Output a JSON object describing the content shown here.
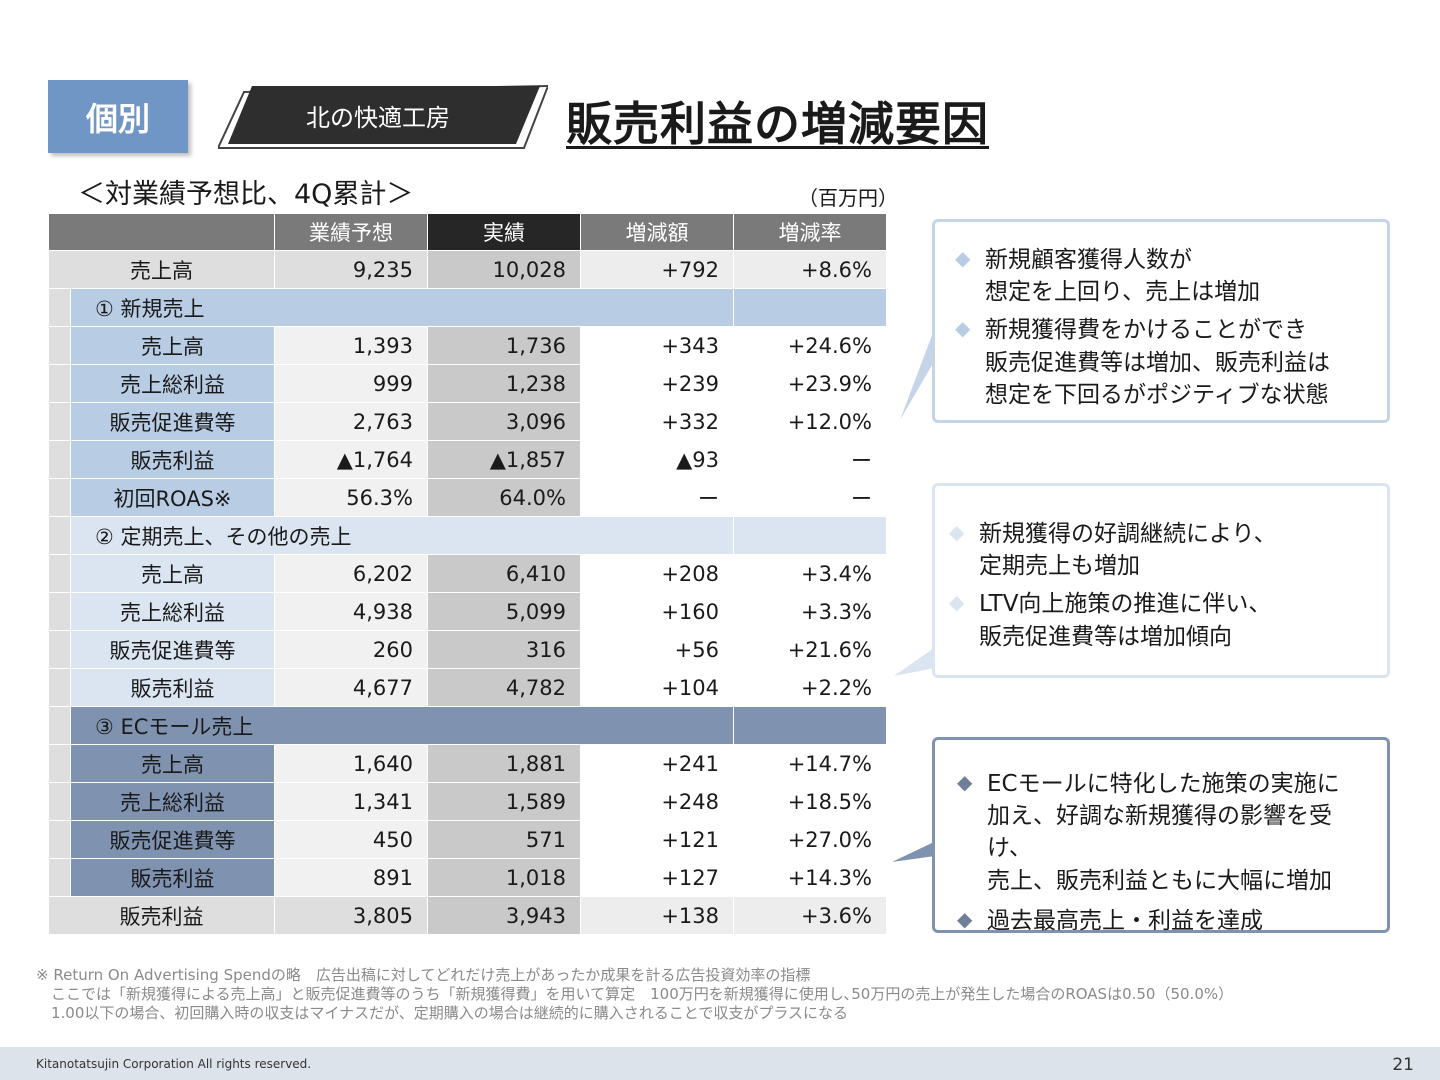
{
  "header": {
    "badge": "個別",
    "company": "北の快適工房",
    "title": "販売利益の増減要因"
  },
  "subtitle": "＜対業績予想比、4Q累計＞",
  "unit": "（百万円）",
  "table": {
    "columns": [
      "業績予想",
      "実績",
      "増減額",
      "増減率"
    ],
    "total_top": {
      "label": "売上高",
      "plan": "9,235",
      "actual": "10,028",
      "diff": "+792",
      "rate": "+8.6%"
    },
    "sections": [
      {
        "title": "① 新規売上",
        "rows": [
          {
            "label": "売上高",
            "plan": "1,393",
            "actual": "1,736",
            "diff": "+343",
            "rate": "+24.6%"
          },
          {
            "label": "売上総利益",
            "plan": "999",
            "actual": "1,238",
            "diff": "+239",
            "rate": "+23.9%"
          },
          {
            "label": "販売促進費等",
            "plan": "2,763",
            "actual": "3,096",
            "diff": "+332",
            "rate": "+12.0%"
          },
          {
            "label": "販売利益",
            "plan": "▲1,764",
            "actual": "▲1,857",
            "diff": "▲93",
            "rate": "ー"
          },
          {
            "label": "初回ROAS※",
            "plan": "56.3%",
            "actual": "64.0%",
            "diff": "ー",
            "rate": "ー"
          }
        ]
      },
      {
        "title": "② 定期売上、その他の売上",
        "rows": [
          {
            "label": "売上高",
            "plan": "6,202",
            "actual": "6,410",
            "diff": "+208",
            "rate": "+3.4%"
          },
          {
            "label": "売上総利益",
            "plan": "4,938",
            "actual": "5,099",
            "diff": "+160",
            "rate": "+3.3%"
          },
          {
            "label": "販売促進費等",
            "plan": "260",
            "actual": "316",
            "diff": "+56",
            "rate": "+21.6%"
          },
          {
            "label": "販売利益",
            "plan": "4,677",
            "actual": "4,782",
            "diff": "+104",
            "rate": "+2.2%"
          }
        ]
      },
      {
        "title": "③ ECモール売上",
        "rows": [
          {
            "label": "売上高",
            "plan": "1,640",
            "actual": "1,881",
            "diff": "+241",
            "rate": "+14.7%"
          },
          {
            "label": "売上総利益",
            "plan": "1,341",
            "actual": "1,589",
            "diff": "+248",
            "rate": "+18.5%"
          },
          {
            "label": "販売促進費等",
            "plan": "450",
            "actual": "571",
            "diff": "+121",
            "rate": "+27.0%"
          },
          {
            "label": "販売利益",
            "plan": "891",
            "actual": "1,018",
            "diff": "+127",
            "rate": "+14.3%"
          }
        ]
      }
    ],
    "total_bottom": {
      "label": "販売利益",
      "plan": "3,805",
      "actual": "3,943",
      "diff": "+138",
      "rate": "+3.6%"
    }
  },
  "callouts": [
    {
      "items": [
        {
          "line1": "新規顧客獲得人数が",
          "line2": "想定を上回り、売上は増加"
        },
        {
          "line1": "新規獲得費をかけることができ",
          "line2": "販売促進費等は増加、販売利益は",
          "line3": "想定を下回るがポジティブな状態"
        }
      ]
    },
    {
      "items": [
        {
          "line1": "新規獲得の好調継続により、",
          "line2": "定期売上も増加"
        },
        {
          "line1": "LTV向上施策の推進に伴い、",
          "line2": "販売促進費等は増加傾向"
        }
      ]
    },
    {
      "items": [
        {
          "line1": "ECモールに特化した施策の実施に",
          "line2": "加え、好調な新規獲得の影響を受け、",
          "line3": "売上、販売利益ともに大幅に増加"
        },
        {
          "line1": "過去最高売上・利益を達成"
        }
      ]
    }
  ],
  "note": {
    "line1": "※ Return On Advertising Spendの略　広告出稿に対してどれだけ売上があったか成果を計る広告投資効率の指標",
    "line2": "　ここでは「新規獲得による売上高」と販売促進費等のうち「新規獲得費」を用いて算定　100万円を新規獲得に使用し､50万円の売上が発生した場合のROASは0.50（50.0%）",
    "line3": "　1.00以下の場合、初回購入時の収支はマイナスだが、定期購入の場合は継続的に購入されることで収支がプラスになる"
  },
  "footer": {
    "copyright": "Kitanotatsujin Corporation All rights reserved.",
    "page": "21"
  }
}
